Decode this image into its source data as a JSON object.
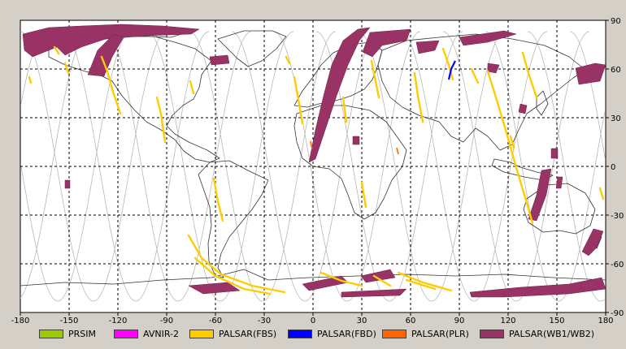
{
  "x_ticks": [
    "-180",
    "-150",
    "-120",
    "-90",
    "-60",
    "-30",
    "0",
    "30",
    "60",
    "90",
    "120",
    "150",
    "180"
  ],
  "y_ticks": [
    "90",
    "60",
    "30",
    "0",
    "-30",
    "-60",
    "-90"
  ],
  "colors": {
    "background": "#d4d0c8",
    "ocean": "#ffffff",
    "coastline": "#333333",
    "orbit_track": "#b8b8b8",
    "grid": "#000000"
  },
  "legend": [
    {
      "label": "PRSIM",
      "color": "#99cc00"
    },
    {
      "label": "AVNIR-2",
      "color": "#ff00ff"
    },
    {
      "label": "PALSAR(FBS)",
      "color": "#ffcc00"
    },
    {
      "label": "PALSAR(FBD)",
      "color": "#0000ff"
    },
    {
      "label": "PALSAR(PLR)",
      "color": "#ff6600"
    },
    {
      "label": "PALSAR(WB1/WB2)",
      "color": "#993366"
    }
  ]
}
